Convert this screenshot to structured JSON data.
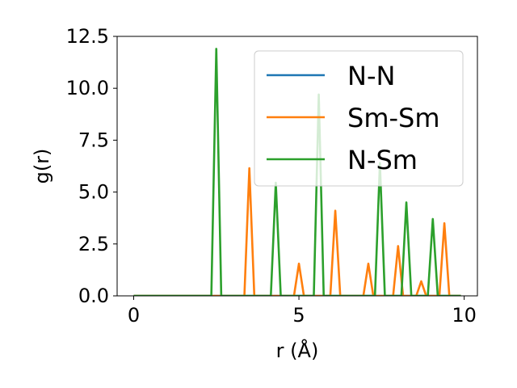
{
  "chart_data": {
    "type": "line",
    "title": "",
    "xlabel": "r (Å)",
    "ylabel": "g(r)",
    "xlim": [
      -0.5,
      10.4
    ],
    "ylim": [
      0,
      12.5
    ],
    "xticks": [
      0,
      5,
      10
    ],
    "xtick_labels": [
      "0",
      "5",
      "10"
    ],
    "yticks": [
      0,
      2.5,
      5,
      7.5,
      10,
      12.5
    ],
    "ytick_labels": [
      "0.0",
      "2.5",
      "5.0",
      "7.5",
      "10.0",
      "12.5"
    ],
    "grid": false,
    "legend_position": "top-right",
    "series": [
      {
        "name": "N-N",
        "color": "#1f77b4",
        "x": [
          0,
          9.9
        ],
        "y": [
          0,
          0
        ]
      },
      {
        "name": "Sm-Sm",
        "color": "#ff7f0e",
        "x": [
          0,
          3.35,
          3.5,
          3.65,
          4.85,
          5.0,
          5.15,
          5.95,
          6.1,
          6.25,
          6.95,
          7.1,
          7.25,
          7.85,
          8.0,
          8.15,
          8.55,
          8.7,
          8.85,
          9.25,
          9.4,
          9.55,
          9.9
        ],
        "y": [
          0,
          0,
          6.15,
          0,
          0,
          1.55,
          0,
          0,
          4.1,
          0,
          0,
          1.55,
          0,
          0,
          2.4,
          0,
          0,
          0.7,
          0,
          0,
          3.5,
          0,
          0
        ]
      },
      {
        "name": "N-Sm",
        "color": "#2ca02c",
        "x": [
          0,
          2.35,
          2.5,
          2.65,
          4.15,
          4.3,
          4.45,
          5.45,
          5.6,
          5.75,
          7.3,
          7.45,
          7.6,
          8.1,
          8.25,
          8.4,
          8.9,
          9.05,
          9.2,
          9.9
        ],
        "y": [
          0,
          0,
          11.9,
          0,
          0,
          5.45,
          0,
          0,
          9.7,
          0,
          0,
          6.4,
          0,
          0,
          4.5,
          0,
          0,
          3.7,
          0,
          0
        ]
      }
    ]
  }
}
